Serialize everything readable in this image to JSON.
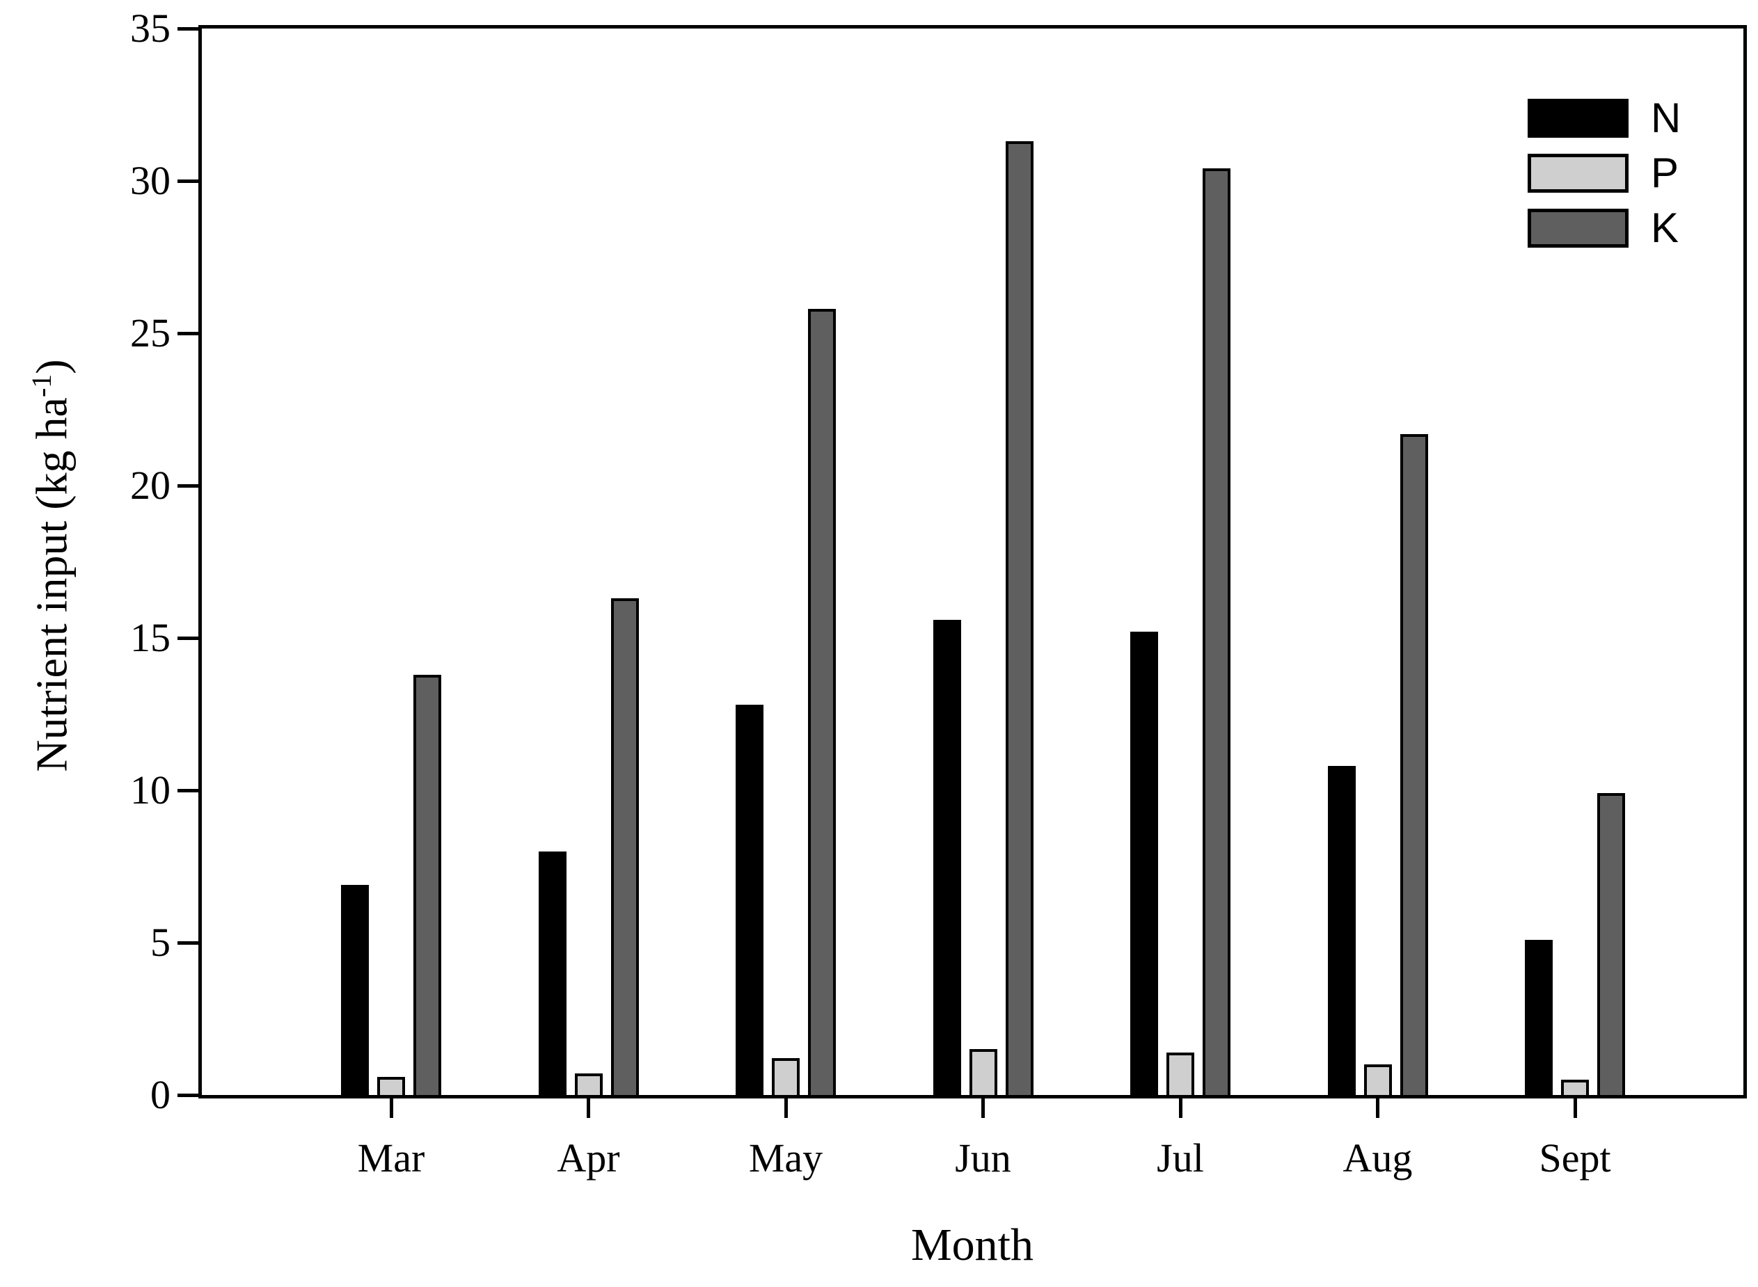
{
  "chart_data": {
    "type": "bar",
    "title": "",
    "xlabel": "Month",
    "ylabel": "Nutrient input (kg ha-1)",
    "ylabel_parts": {
      "prefix": "Nutrient input (kg ha",
      "sup": "-1",
      "suffix": ")"
    },
    "categories": [
      "Mar",
      "Apr",
      "May",
      "Jun",
      "Jul",
      "Aug",
      "Sept"
    ],
    "series": [
      {
        "name": "N",
        "color": "#000000",
        "values": [
          6.9,
          8.0,
          12.8,
          15.6,
          15.2,
          10.8,
          5.1
        ]
      },
      {
        "name": "P",
        "color": "#cfcfcf",
        "values": [
          0.6,
          0.7,
          1.2,
          1.5,
          1.4,
          1.0,
          0.5
        ]
      },
      {
        "name": "K",
        "color": "#5f5f5f",
        "values": [
          13.8,
          16.3,
          25.8,
          31.3,
          30.4,
          21.7,
          9.9
        ]
      }
    ],
    "ylim": [
      0,
      35
    ],
    "yticks": [
      "0",
      "5",
      "10",
      "15",
      "20",
      "25",
      "30",
      "35"
    ],
    "legend_position": "top-right",
    "grid": false,
    "axis_color": "#000000",
    "background_color": "#ffffff"
  }
}
